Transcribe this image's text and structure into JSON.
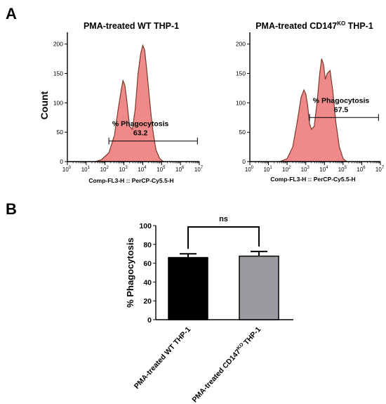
{
  "panel_labels": [
    "A",
    "B"
  ],
  "chart_data": [
    {
      "type": "area",
      "title": "PMA-treated WT THP-1",
      "title_sup": "",
      "title_after": "",
      "xlabel": "Comp-FL3-H :: PerCP-Cy5.5-H",
      "ylabel": "Count",
      "x_scale": "log",
      "xlim_exp": [
        0,
        7
      ],
      "x_tick_base": "10",
      "x_tick_exponents": [
        "0",
        "1",
        "2",
        "3",
        "4",
        "5",
        "6",
        "7"
      ],
      "ylim": [
        0,
        220
      ],
      "y_ticks": [
        "0",
        "50",
        "100",
        "150",
        "200"
      ],
      "gate_label": "% Phagocytosis",
      "gate_value": "63.2",
      "gate_range_exp": [
        2.2,
        6.9
      ],
      "gate_count": 35,
      "histogram": {
        "x_exp": [
          1.5,
          1.8,
          2.2,
          2.5,
          2.7,
          2.85,
          2.95,
          3.05,
          3.15,
          3.3,
          3.45,
          3.6,
          3.75,
          3.9,
          4.0,
          4.1,
          4.2,
          4.35,
          4.5,
          4.7,
          4.9,
          5.1
        ],
        "counts": [
          0,
          3,
          15,
          45,
          90,
          120,
          138,
          130,
          105,
          60,
          55,
          90,
          150,
          185,
          198,
          190,
          160,
          110,
          60,
          20,
          5,
          0
        ]
      }
    },
    {
      "type": "area",
      "title": "PMA-treated CD147",
      "title_sup": "KO",
      "title_after": " THP-1",
      "xlabel": "Comp-FL3-H :: PerCP-Cy5.5-H",
      "ylabel": "",
      "x_scale": "log",
      "xlim_exp": [
        0,
        7
      ],
      "x_tick_base": "10",
      "x_tick_exponents": [
        "0",
        "1",
        "2",
        "3",
        "4",
        "5",
        "6",
        "7"
      ],
      "ylim": [
        0,
        220
      ],
      "y_ticks": [
        "0",
        "50",
        "100",
        "150",
        "200"
      ],
      "gate_label": "% Phagocytosis",
      "gate_value": "67.5",
      "gate_range_exp": [
        3.2,
        6.9
      ],
      "gate_count": 75,
      "histogram": {
        "x_exp": [
          1.6,
          2.0,
          2.3,
          2.55,
          2.75,
          2.9,
          3.0,
          3.1,
          3.2,
          3.3,
          3.45,
          3.6,
          3.75,
          3.85,
          3.95,
          4.05,
          4.15,
          4.3,
          4.45,
          4.6,
          4.8,
          5.0,
          5.2
        ],
        "counts": [
          0,
          5,
          25,
          70,
          110,
          122,
          115,
          95,
          65,
          55,
          60,
          100,
          150,
          175,
          165,
          140,
          150,
          155,
          120,
          70,
          25,
          5,
          0
        ]
      }
    },
    {
      "type": "bar",
      "ylabel": "% Phagocytosis",
      "ylim": [
        0,
        100
      ],
      "y_ticks": [
        "0",
        "20",
        "40",
        "60",
        "80",
        "100"
      ],
      "categories": [
        "PMA-treated WT THP-1",
        "PMA-treated CD147KO THP-1"
      ],
      "category_labels": [
        {
          "main": "PMA-treated WT THP-1",
          "sup": "",
          "after": ""
        },
        {
          "main": "PMA-treated CD147",
          "sup": "KO",
          "after": "THP-1"
        }
      ],
      "values": [
        66,
        67.5
      ],
      "errors": [
        4,
        5
      ],
      "bar_colors": [
        "#000000",
        "#9b9aa1"
      ],
      "significance": "ns"
    }
  ]
}
